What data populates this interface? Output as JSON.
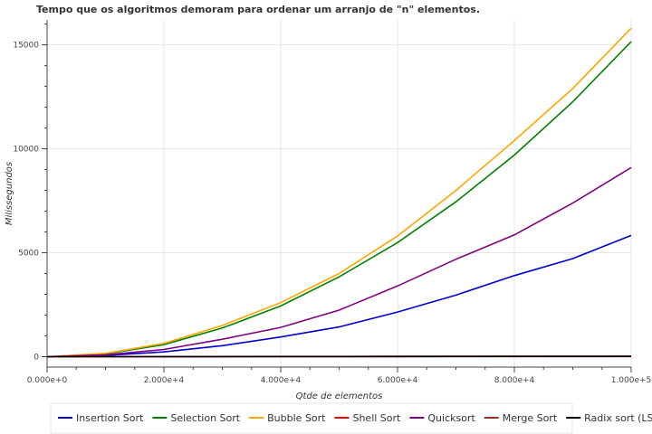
{
  "chart_data": {
    "type": "line",
    "title": "Tempo que os algoritmos demoram para ordenar um arranjo de \"n\" elementos.",
    "xlabel": "Qtde de elementos",
    "ylabel": "Milissegundos",
    "xlim": [
      0,
      100000
    ],
    "ylim": [
      -500,
      16200
    ],
    "grid": true,
    "legend_position": "bottom",
    "x": [
      0,
      10000,
      20000,
      30000,
      40000,
      50000,
      60000,
      70000,
      80000,
      90000,
      100000
    ],
    "x_ticks": [
      0,
      20000,
      40000,
      60000,
      80000,
      100000
    ],
    "x_tick_labels": [
      "0.000e+0",
      "2.000e+4",
      "4.000e+4",
      "6.000e+4",
      "8.000e+4",
      "1.000e+5"
    ],
    "y_ticks": [
      0,
      5000,
      10000,
      15000
    ],
    "y_tick_labels": [
      "0",
      "5000",
      "10000",
      "15000"
    ],
    "series": [
      {
        "name": "Insertion Sort",
        "color": "#0000cc",
        "values": [
          0,
          60,
          230,
          530,
          950,
          1430,
          2150,
          2960,
          3900,
          4720,
          5830
        ]
      },
      {
        "name": "Selection Sort",
        "color": "#008000",
        "values": [
          0,
          140,
          580,
          1380,
          2440,
          3840,
          5490,
          7450,
          9700,
          12260,
          15150
        ]
      },
      {
        "name": "Bubble Sort",
        "color": "#ffa500",
        "values": [
          0,
          160,
          640,
          1500,
          2600,
          4000,
          5800,
          8000,
          10400,
          12900,
          15800
        ]
      },
      {
        "name": "Shell Sort",
        "color": "#ff0000",
        "values": [
          0,
          2,
          4,
          6,
          8,
          10,
          12,
          14,
          16,
          18,
          20
        ]
      },
      {
        "name": "Quicksort",
        "color": "#800080",
        "values": [
          0,
          90,
          350,
          840,
          1410,
          2240,
          3400,
          4690,
          5860,
          7390,
          9100
        ]
      },
      {
        "name": "Merge Sort",
        "color": "#a52a2a",
        "values": [
          0,
          3,
          6,
          9,
          12,
          15,
          18,
          21,
          24,
          27,
          30
        ]
      },
      {
        "name": "Radix sort (LSD)",
        "color": "#000000",
        "values": [
          0,
          1,
          2,
          3,
          4,
          5,
          6,
          7,
          8,
          9,
          10
        ]
      }
    ]
  }
}
